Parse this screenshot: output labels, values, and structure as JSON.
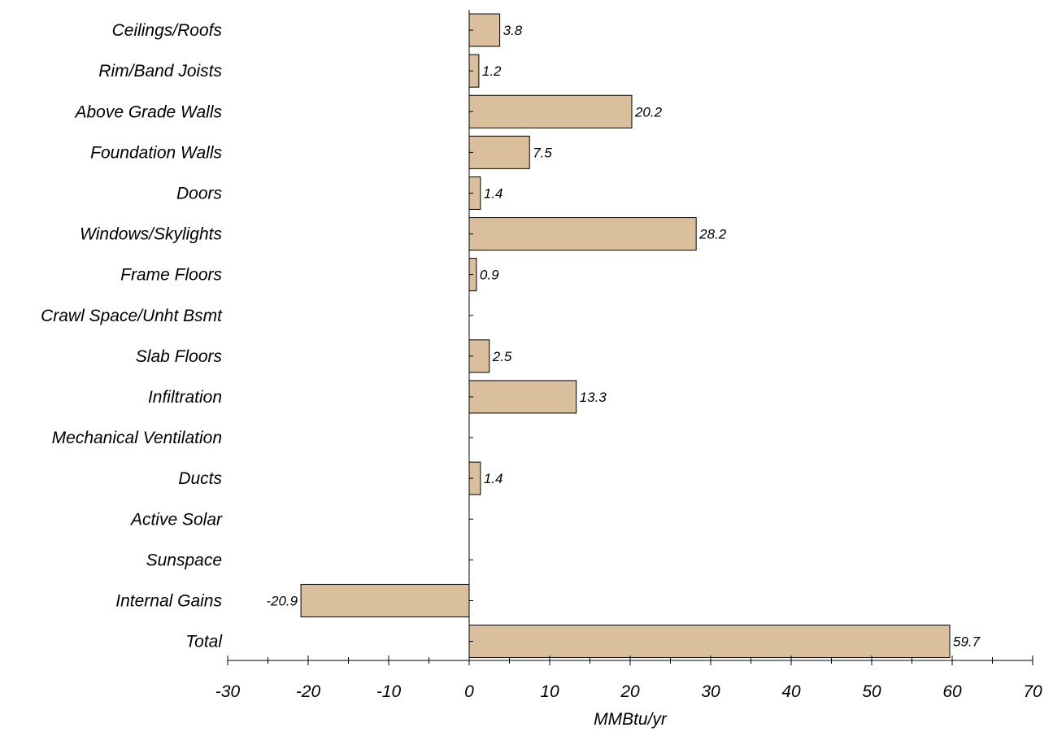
{
  "chart_data": {
    "type": "bar",
    "orientation": "horizontal",
    "categories": [
      "Ceilings/Roofs",
      "Rim/Band Joists",
      "Above Grade Walls",
      "Foundation Walls",
      "Doors",
      "Windows/Skylights",
      "Frame Floors",
      "Crawl Space/Unht Bsmt",
      "Slab Floors",
      "Infiltration",
      "Mechanical Ventilation",
      "Ducts",
      "Active Solar",
      "Sunspace",
      "Internal Gains",
      "Total"
    ],
    "values": [
      3.8,
      1.2,
      20.2,
      7.5,
      1.4,
      28.2,
      0.9,
      null,
      2.5,
      13.3,
      null,
      1.4,
      null,
      null,
      -20.9,
      59.7
    ],
    "value_labels": [
      "3.8",
      "1.2",
      "20.2",
      "7.5",
      "1.4",
      "28.2",
      "0.9",
      "",
      "2.5",
      "13.3",
      "",
      "1.4",
      "",
      "",
      "-20.9",
      "59.7"
    ],
    "title": "",
    "xlabel": "MMBtu/yr",
    "ylabel": "",
    "xlim": [
      -30,
      70
    ],
    "xticks": [
      -30,
      -20,
      -10,
      0,
      10,
      20,
      30,
      40,
      50,
      60,
      70
    ],
    "xtick_labels": [
      "-30",
      "-20",
      "-10",
      "0",
      "10",
      "20",
      "30",
      "40",
      "50",
      "60",
      "70"
    ],
    "grid": false,
    "legend": "none",
    "bar_color": "#d9bf9c",
    "edge_color": "#000000"
  }
}
